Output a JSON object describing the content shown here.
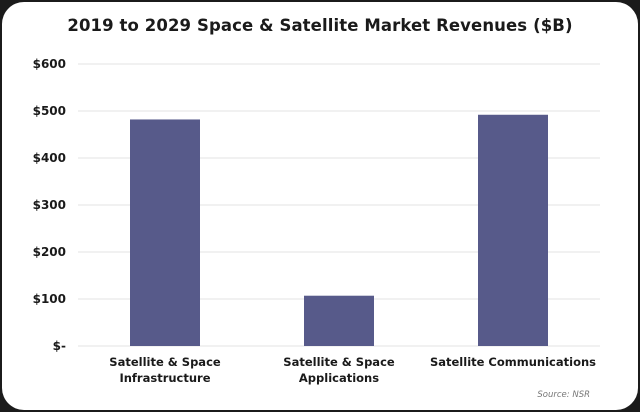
{
  "chart_data": {
    "type": "bar",
    "title": "2019 to 2029 Space & Satellite Market Revenues ($B)",
    "categories": [
      [
        "Satellite & Space",
        "Infrastructure"
      ],
      [
        "Satellite & Space",
        "Applications"
      ],
      [
        "Satellite Communications"
      ]
    ],
    "values": [
      482,
      107,
      492
    ],
    "ylim": [
      0,
      600
    ],
    "yticks": [
      0,
      100,
      200,
      300,
      400,
      500,
      600
    ],
    "ytick_labels": [
      "$-",
      "$100",
      "$200",
      "$300",
      "$400",
      "$500",
      "$600"
    ],
    "xlabel": "",
    "ylabel": "",
    "grid": true,
    "legend": "none",
    "bar_color": "#575a8a",
    "source": "Source: NSR"
  }
}
